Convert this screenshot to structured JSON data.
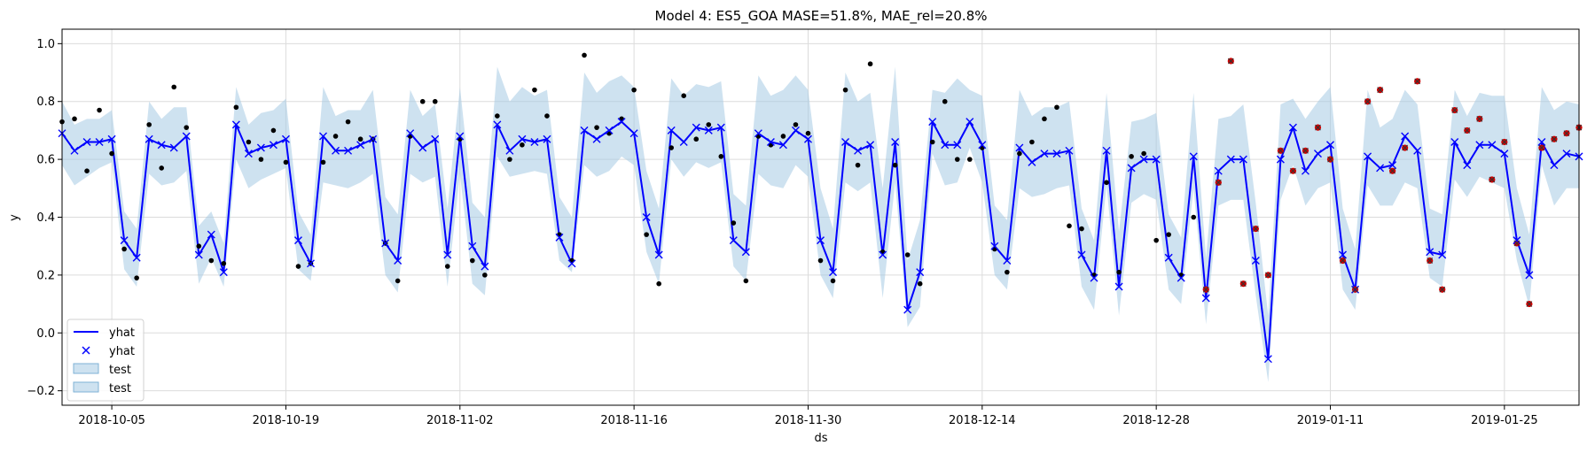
{
  "chart_data": {
    "type": "line",
    "title": "Model 4: ES5_GOA MASE=51.8%, MAE_rel=20.8%",
    "xlabel": "ds",
    "ylabel": "y",
    "x_start": "2018-10-01",
    "x_end": "2019-01-31",
    "ylim": [
      -0.25,
      1.05
    ],
    "yticks": [
      -0.2,
      0.0,
      0.2,
      0.4,
      0.6,
      0.8,
      1.0
    ],
    "ytick_labels": [
      "−0.2",
      "0.0",
      "0.2",
      "0.4",
      "0.6",
      "0.8",
      "1.0"
    ],
    "xticks": [
      "2018-10-05",
      "2018-10-19",
      "2018-11-02",
      "2018-11-16",
      "2018-11-30",
      "2018-12-14",
      "2018-12-28",
      "2019-01-11",
      "2019-01-25"
    ],
    "grid": true,
    "legend": {
      "placement": "lower-left",
      "entries": [
        {
          "label": "yhat",
          "kind": "line"
        },
        {
          "label": "yhat",
          "kind": "marker"
        },
        {
          "label": "test",
          "kind": "band"
        },
        {
          "label": "test",
          "kind": "band"
        }
      ]
    },
    "colors": {
      "forecast": "#0000ff",
      "band": "#a6cbe3",
      "train": "#000000",
      "test": "#cc0000"
    },
    "forecast": {
      "x": [
        "2018-10-01",
        "2018-10-02",
        "2018-10-03",
        "2018-10-04",
        "2018-10-05",
        "2018-10-06",
        "2018-10-07",
        "2018-10-08",
        "2018-10-09",
        "2018-10-10",
        "2018-10-11",
        "2018-10-12",
        "2018-10-13",
        "2018-10-14",
        "2018-10-15",
        "2018-10-16",
        "2018-10-17",
        "2018-10-18",
        "2018-10-19",
        "2018-10-20",
        "2018-10-21",
        "2018-10-22",
        "2018-10-23",
        "2018-10-24",
        "2018-10-25",
        "2018-10-26",
        "2018-10-27",
        "2018-10-28",
        "2018-10-29",
        "2018-10-30",
        "2018-10-31",
        "2018-11-01",
        "2018-11-02",
        "2018-11-03",
        "2018-11-04",
        "2018-11-05",
        "2018-11-06",
        "2018-11-07",
        "2018-11-08",
        "2018-11-09",
        "2018-11-10",
        "2018-11-11",
        "2018-11-12",
        "2018-11-13",
        "2018-11-14",
        "2018-11-15",
        "2018-11-16",
        "2018-11-17",
        "2018-11-18",
        "2018-11-19",
        "2018-11-20",
        "2018-11-21",
        "2018-11-22",
        "2018-11-23",
        "2018-11-24",
        "2018-11-25",
        "2018-11-26",
        "2018-11-27",
        "2018-11-28",
        "2018-11-29",
        "2018-11-30",
        "2018-12-01",
        "2018-12-02",
        "2018-12-03",
        "2018-12-04",
        "2018-12-05",
        "2018-12-06",
        "2018-12-07",
        "2018-12-08",
        "2018-12-09",
        "2018-12-10",
        "2018-12-11",
        "2018-12-12",
        "2018-12-13",
        "2018-12-14",
        "2018-12-15",
        "2018-12-16",
        "2018-12-17",
        "2018-12-18",
        "2018-12-19",
        "2018-12-20",
        "2018-12-21",
        "2018-12-22",
        "2018-12-23",
        "2018-12-24",
        "2018-12-25",
        "2018-12-26",
        "2018-12-27",
        "2018-12-28",
        "2018-12-29",
        "2018-12-30",
        "2018-12-31",
        "2019-01-01",
        "2019-01-02",
        "2019-01-03",
        "2019-01-04",
        "2019-01-05",
        "2019-01-06",
        "2019-01-07",
        "2019-01-08",
        "2019-01-09",
        "2019-01-10",
        "2019-01-11",
        "2019-01-12",
        "2019-01-13",
        "2019-01-14",
        "2019-01-15",
        "2019-01-16",
        "2019-01-17",
        "2019-01-18",
        "2019-01-19",
        "2019-01-20",
        "2019-01-21",
        "2019-01-22",
        "2019-01-23",
        "2019-01-24",
        "2019-01-25",
        "2019-01-26",
        "2019-01-27",
        "2019-01-28",
        "2019-01-29",
        "2019-01-30",
        "2019-01-31"
      ],
      "yhat": [
        0.69,
        0.63,
        0.66,
        0.66,
        0.67,
        0.32,
        0.26,
        0.67,
        0.65,
        0.64,
        0.68,
        0.27,
        0.34,
        0.21,
        0.72,
        0.62,
        0.64,
        0.65,
        0.67,
        0.32,
        0.24,
        0.68,
        0.63,
        0.63,
        0.65,
        0.67,
        0.31,
        0.25,
        0.69,
        0.64,
        0.67,
        0.27,
        0.68,
        0.3,
        0.23,
        0.72,
        0.63,
        0.67,
        0.66,
        0.67,
        0.33,
        0.24,
        0.7,
        0.67,
        0.7,
        0.73,
        0.69,
        0.4,
        0.27,
        0.7,
        0.66,
        0.71,
        0.7,
        0.71,
        0.32,
        0.28,
        0.69,
        0.66,
        0.65,
        0.7,
        0.67,
        0.32,
        0.21,
        0.66,
        0.63,
        0.65,
        0.27,
        0.66,
        0.08,
        0.21,
        0.73,
        0.65,
        0.65,
        0.73,
        0.65,
        0.3,
        0.25,
        0.64,
        0.59,
        0.62,
        0.62,
        0.63,
        0.27,
        0.19,
        0.63,
        0.16,
        0.57,
        0.6,
        0.6,
        0.26,
        0.19,
        0.61,
        0.12,
        0.56,
        0.6,
        0.6,
        0.25,
        -0.09,
        0.6,
        0.71,
        0.56,
        0.62,
        0.65,
        0.27,
        0.15,
        0.61,
        0.57,
        0.58,
        0.68,
        0.63,
        0.28,
        0.27,
        0.66,
        0.58,
        0.65,
        0.65,
        0.62,
        0.32,
        0.2,
        0.66,
        0.58,
        0.62,
        0.61
      ],
      "upper": [
        0.8,
        0.72,
        0.74,
        0.74,
        0.77,
        0.42,
        0.36,
        0.8,
        0.74,
        0.78,
        0.78,
        0.37,
        0.42,
        0.31,
        0.85,
        0.72,
        0.76,
        0.77,
        0.81,
        0.42,
        0.34,
        0.85,
        0.75,
        0.77,
        0.77,
        0.84,
        0.47,
        0.41,
        0.84,
        0.75,
        0.79,
        0.43,
        0.85,
        0.45,
        0.4,
        0.92,
        0.8,
        0.85,
        0.82,
        0.84,
        0.47,
        0.4,
        0.9,
        0.83,
        0.87,
        0.89,
        0.85,
        0.56,
        0.43,
        0.88,
        0.82,
        0.86,
        0.85,
        0.87,
        0.48,
        0.44,
        0.89,
        0.82,
        0.84,
        0.89,
        0.84,
        0.5,
        0.36,
        0.9,
        0.8,
        0.83,
        0.5,
        0.92,
        0.25,
        0.39,
        0.84,
        0.83,
        0.88,
        0.84,
        0.82,
        0.44,
        0.39,
        0.84,
        0.75,
        0.78,
        0.78,
        0.8,
        0.43,
        0.32,
        0.83,
        0.35,
        0.73,
        0.74,
        0.76,
        0.41,
        0.33,
        0.83,
        0.26,
        0.74,
        0.75,
        0.79,
        0.45,
        0.06,
        0.79,
        0.81,
        0.74,
        0.8,
        0.85,
        0.43,
        0.29,
        0.84,
        0.71,
        0.74,
        0.84,
        0.79,
        0.43,
        0.41,
        0.84,
        0.75,
        0.83,
        0.82,
        0.82,
        0.5,
        0.34,
        0.85,
        0.77,
        0.8,
        0.79
      ],
      "lower": [
        0.58,
        0.51,
        0.54,
        0.57,
        0.59,
        0.22,
        0.16,
        0.55,
        0.51,
        0.52,
        0.56,
        0.17,
        0.26,
        0.16,
        0.6,
        0.5,
        0.53,
        0.55,
        0.57,
        0.22,
        0.18,
        0.52,
        0.51,
        0.5,
        0.52,
        0.55,
        0.2,
        0.14,
        0.55,
        0.52,
        0.54,
        0.16,
        0.55,
        0.17,
        0.13,
        0.61,
        0.54,
        0.55,
        0.56,
        0.55,
        0.25,
        0.21,
        0.58,
        0.54,
        0.56,
        0.61,
        0.58,
        0.28,
        0.17,
        0.6,
        0.54,
        0.59,
        0.57,
        0.59,
        0.23,
        0.18,
        0.55,
        0.51,
        0.5,
        0.58,
        0.54,
        0.2,
        0.12,
        0.52,
        0.49,
        0.52,
        0.12,
        0.52,
        0.02,
        0.09,
        0.62,
        0.51,
        0.52,
        0.64,
        0.52,
        0.2,
        0.15,
        0.5,
        0.47,
        0.48,
        0.5,
        0.51,
        0.16,
        0.08,
        0.51,
        0.06,
        0.45,
        0.48,
        0.46,
        0.15,
        0.1,
        0.5,
        0.03,
        0.44,
        0.46,
        0.46,
        0.13,
        -0.17,
        0.46,
        0.58,
        0.44,
        0.5,
        0.52,
        0.15,
        0.08,
        0.51,
        0.44,
        0.44,
        0.52,
        0.5,
        0.19,
        0.16,
        0.53,
        0.47,
        0.54,
        0.52,
        0.5,
        0.25,
        0.09,
        0.58,
        0.44,
        0.5,
        0.5
      ]
    },
    "observed": {
      "x": [
        "2018-10-01",
        "2018-10-02",
        "2018-10-03",
        "2018-10-04",
        "2018-10-05",
        "2018-10-06",
        "2018-10-07",
        "2018-10-08",
        "2018-10-09",
        "2018-10-10",
        "2018-10-11",
        "2018-10-12",
        "2018-10-13",
        "2018-10-14",
        "2018-10-15",
        "2018-10-16",
        "2018-10-17",
        "2018-10-18",
        "2018-10-19",
        "2018-10-20",
        "2018-10-21",
        "2018-10-22",
        "2018-10-23",
        "2018-10-24",
        "2018-10-25",
        "2018-10-26",
        "2018-10-27",
        "2018-10-28",
        "2018-10-29",
        "2018-10-30",
        "2018-10-31",
        "2018-11-01",
        "2018-11-02",
        "2018-11-03",
        "2018-11-04",
        "2018-11-05",
        "2018-11-06",
        "2018-11-07",
        "2018-11-08",
        "2018-11-09",
        "2018-11-10",
        "2018-11-11",
        "2018-11-12",
        "2018-11-13",
        "2018-11-14",
        "2018-11-15",
        "2018-11-16",
        "2018-11-17",
        "2018-11-18",
        "2018-11-19",
        "2018-11-20",
        "2018-11-21",
        "2018-11-22",
        "2018-11-23",
        "2018-11-24",
        "2018-11-25",
        "2018-11-26",
        "2018-11-27",
        "2018-11-28",
        "2018-11-29",
        "2018-11-30",
        "2018-12-01",
        "2018-12-02",
        "2018-12-03",
        "2018-12-04",
        "2018-12-05",
        "2018-12-06",
        "2018-12-07",
        "2018-12-08",
        "2018-12-09",
        "2018-12-10",
        "2018-12-11",
        "2018-12-12",
        "2018-12-13",
        "2018-12-14",
        "2018-12-15",
        "2018-12-16",
        "2018-12-17",
        "2018-12-18",
        "2018-12-19",
        "2018-12-20",
        "2018-12-21",
        "2018-12-22",
        "2018-12-23",
        "2018-12-24",
        "2018-12-25",
        "2018-12-26",
        "2018-12-27",
        "2018-12-28",
        "2018-12-29",
        "2018-12-30",
        "2018-12-31",
        "2019-01-01",
        "2019-01-02",
        "2019-01-03",
        "2019-01-04",
        "2019-01-05",
        "2019-01-06",
        "2019-01-07",
        "2019-01-08",
        "2019-01-09",
        "2019-01-10",
        "2019-01-11",
        "2019-01-12",
        "2019-01-13",
        "2019-01-14",
        "2019-01-15",
        "2019-01-16",
        "2019-01-17",
        "2019-01-18",
        "2019-01-19",
        "2019-01-20",
        "2019-01-21",
        "2019-01-22",
        "2019-01-23",
        "2019-01-24",
        "2019-01-25",
        "2019-01-26",
        "2019-01-27",
        "2019-01-28",
        "2019-01-29",
        "2019-01-30",
        "2019-01-31"
      ],
      "y": [
        0.73,
        0.74,
        0.56,
        0.77,
        0.62,
        0.29,
        0.19,
        0.72,
        0.57,
        0.85,
        0.71,
        0.3,
        0.25,
        0.24,
        0.78,
        0.66,
        0.6,
        0.7,
        0.59,
        0.23,
        0.24,
        0.59,
        0.68,
        0.73,
        0.67,
        0.67,
        0.31,
        0.18,
        0.68,
        0.8,
        0.8,
        0.23,
        0.67,
        0.25,
        0.2,
        0.75,
        0.6,
        0.65,
        0.84,
        0.75,
        0.34,
        0.25,
        0.96,
        0.71,
        0.69,
        0.74,
        0.84,
        0.34,
        0.17,
        0.64,
        0.82,
        0.67,
        0.72,
        0.61,
        0.38,
        0.18,
        0.68,
        0.65,
        0.68,
        0.72,
        0.69,
        0.25,
        0.18,
        0.84,
        0.58,
        0.93,
        0.28,
        0.58,
        0.27,
        0.17,
        0.66,
        0.8,
        0.6,
        0.6,
        0.64,
        0.29,
        0.21,
        0.62,
        0.66,
        0.74,
        0.78,
        0.37,
        0.36,
        0.2,
        0.52,
        0.21,
        0.61,
        0.62,
        0.32,
        0.34,
        0.2,
        0.4,
        0.15,
        0.52,
        0.94,
        0.17,
        0.36,
        0.2,
        0.63,
        0.56,
        0.63,
        0.71,
        0.6,
        0.25,
        0.15,
        0.8,
        0.84,
        0.56,
        0.64,
        0.87,
        0.25,
        0.15,
        0.77,
        0.7,
        0.74,
        0.53,
        0.66,
        0.31,
        0.1,
        0.64,
        0.67,
        0.69,
        0.71
      ],
      "test_start": "2019-01-01"
    }
  }
}
